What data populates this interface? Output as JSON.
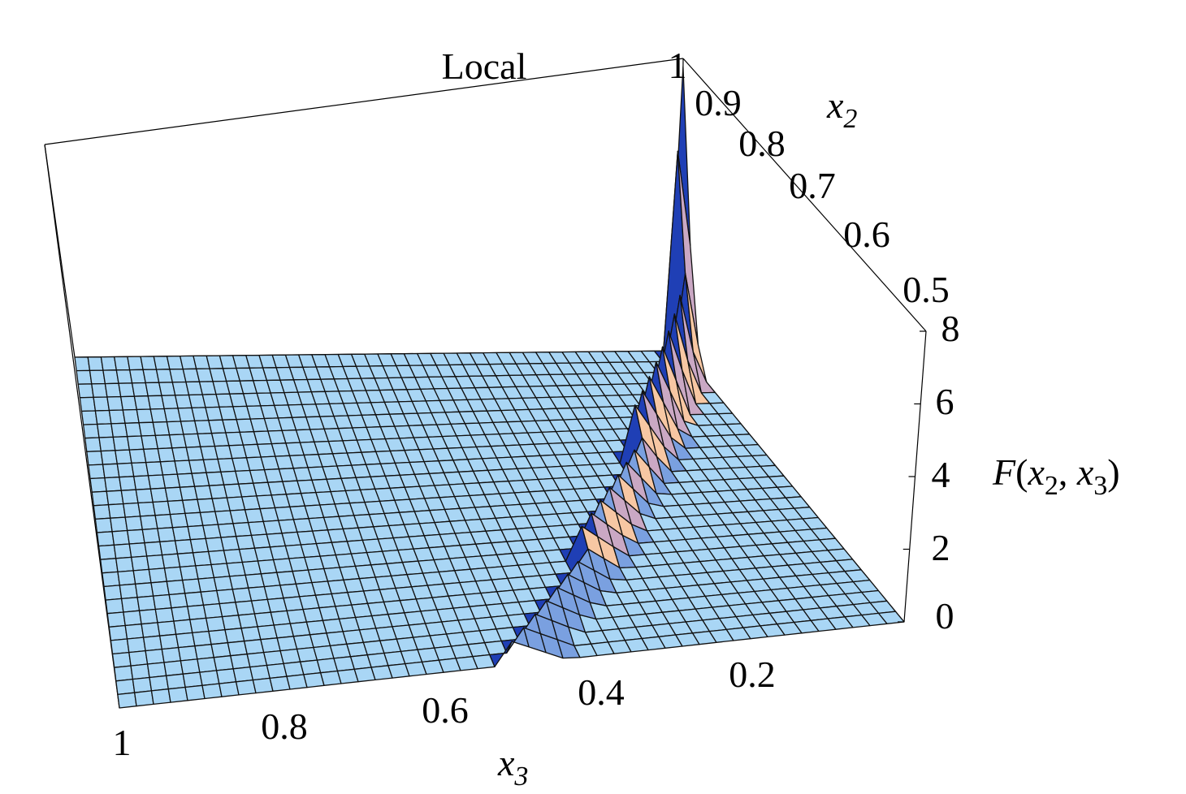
{
  "chart_data": {
    "type": "surface3d",
    "title": "Local",
    "xlabel": "x3",
    "ylabel": "x2",
    "zlabel": "F(x2 , x3)",
    "x3_ticks": [
      "1",
      "0.8",
      "0.6",
      "0.4",
      "0.2"
    ],
    "x2_ticks": [
      "1",
      "0.9",
      "0.8",
      "0.7",
      "0.6",
      "0.5"
    ],
    "z_ticks": [
      "0",
      "2",
      "4",
      "6",
      "8"
    ],
    "x3_range": [
      0,
      1
    ],
    "x2_range": [
      0.5,
      1
    ],
    "z_range": [
      0,
      8
    ],
    "surface": {
      "description_values": "F is ~0 on the floor; a ridge along x2 + x3 ≈ 1 rises steeply as x2 → 1",
      "ridge_heights_at_x2": {
        "0.5": 0.6,
        "0.6": 0.9,
        "0.7": 1.4,
        "0.8": 2.4,
        "0.9": 4.3,
        "0.95": 6.0,
        "1.0": 8.0
      }
    },
    "colors": {
      "floor": "#a9d6f5",
      "ridge_front": "#7aa0e0",
      "ridge_dark": "#1f3fb5",
      "ridge_side_pink": "#caa8c4",
      "ridge_side_peach": "#f7c7a3",
      "mesh_line": "#000000"
    }
  }
}
